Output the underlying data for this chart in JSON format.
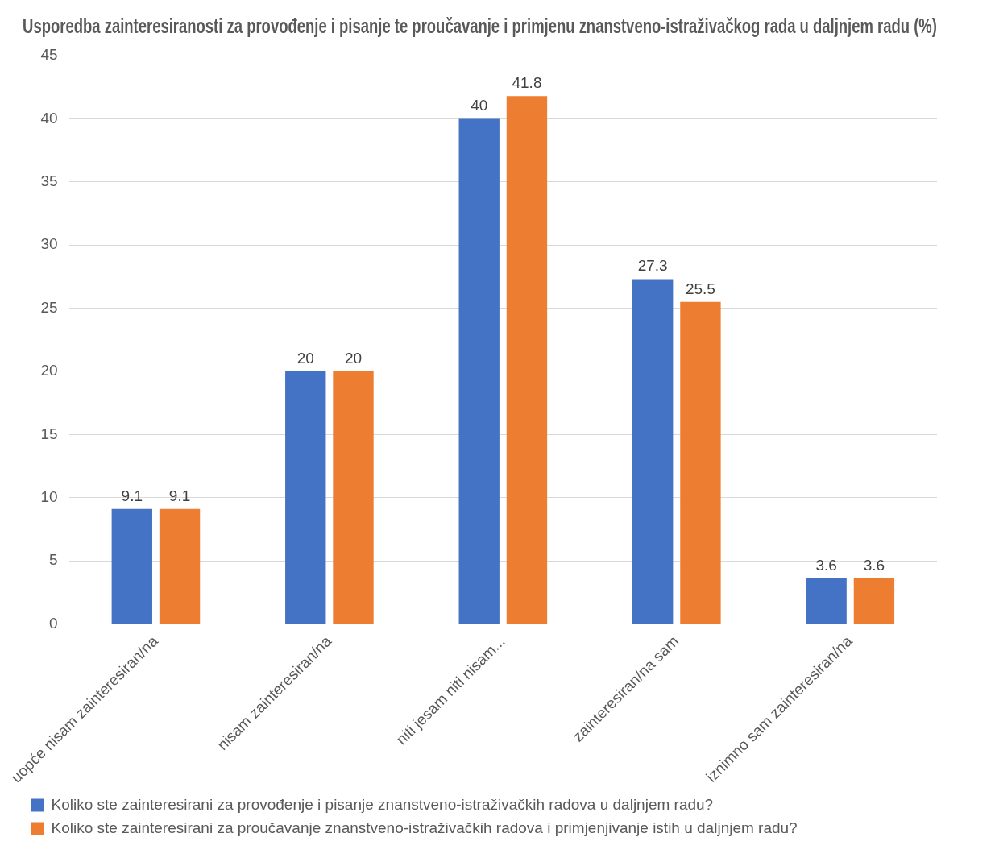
{
  "chart_data": {
    "type": "bar",
    "title": "Usporedba zainteresiranosti za provođenje i pisanje te proučavanje i primjenu znanstveno-istraživačkog rada u daljnjem radu (%)",
    "categories": [
      "uopće nisam zainteresiran/na",
      "nisam zainteresiran/na",
      "niti jesam niti nisam...",
      "zainteresiran/na sam",
      "iznimno sam zainteresiran/na"
    ],
    "series": [
      {
        "name": "Koliko ste zainteresirani za provođenje i pisanje znanstveno-istraživačkih radova u daljnjem radu?",
        "color": "#4472c4",
        "values": [
          9.1,
          20,
          40,
          27.3,
          3.6
        ]
      },
      {
        "name": "Koliko ste zainteresirani za proučavanje znanstveno-istraživačkih radova i primjenjivanje istih u daljnjem radu?",
        "color": "#ed7d31",
        "values": [
          9.1,
          20,
          41.8,
          25.5,
          3.6
        ]
      }
    ],
    "ylim": [
      0,
      45
    ],
    "yticks": [
      0,
      5,
      10,
      15,
      20,
      25,
      30,
      35,
      40,
      45
    ],
    "grid": "y",
    "legend": "bottom",
    "data_labels": true
  }
}
